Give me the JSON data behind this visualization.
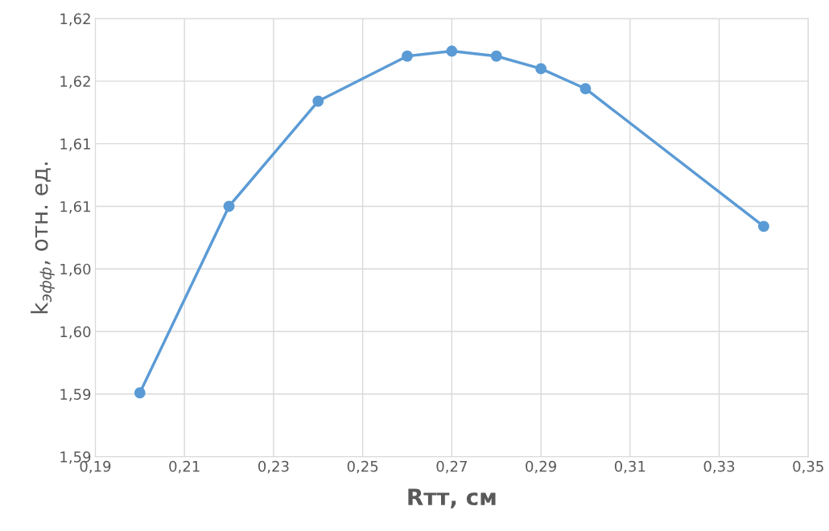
{
  "chart_data": {
    "type": "line",
    "xlabel": "Rтт, см",
    "ylabel": "k$_{эфф}$, отн. ед.",
    "x": [
      0.2,
      0.22,
      0.24,
      0.26,
      0.27,
      0.28,
      0.29,
      0.3,
      0.34
    ],
    "series": [
      {
        "color": "#5b9bd5",
        "values": [
          1.5901,
          1.605,
          1.6134,
          1.617,
          1.6174,
          1.617,
          1.616,
          1.6144,
          1.6034
        ]
      }
    ],
    "xlim": [
      0.19,
      0.35
    ],
    "xticks": [
      {
        "value": 0.19,
        "label": "0,19"
      },
      {
        "value": 0.21,
        "label": "0,21"
      },
      {
        "value": 0.23,
        "label": "0,23"
      },
      {
        "value": 0.25,
        "label": "0,25"
      },
      {
        "value": 0.27,
        "label": "0,27"
      },
      {
        "value": 0.29,
        "label": "0,29"
      },
      {
        "value": 0.31,
        "label": "0,31"
      },
      {
        "value": 0.33,
        "label": "0,33"
      },
      {
        "value": 0.35,
        "label": "0,35"
      }
    ],
    "ylim": [
      1.585,
      1.62
    ],
    "yticks": [
      {
        "value": 1.585,
        "label": "1,59"
      },
      {
        "value": 1.59,
        "label": "1,59"
      },
      {
        "value": 1.595,
        "label": "1,60"
      },
      {
        "value": 1.6,
        "label": "1,60"
      },
      {
        "value": 1.605,
        "label": "1,61"
      },
      {
        "value": 1.61,
        "label": "1,61"
      },
      {
        "value": 1.615,
        "label": "1,62"
      },
      {
        "value": 1.62,
        "label": "1,62"
      }
    ],
    "grid": true,
    "marker": "circle",
    "line_style": "solid"
  }
}
